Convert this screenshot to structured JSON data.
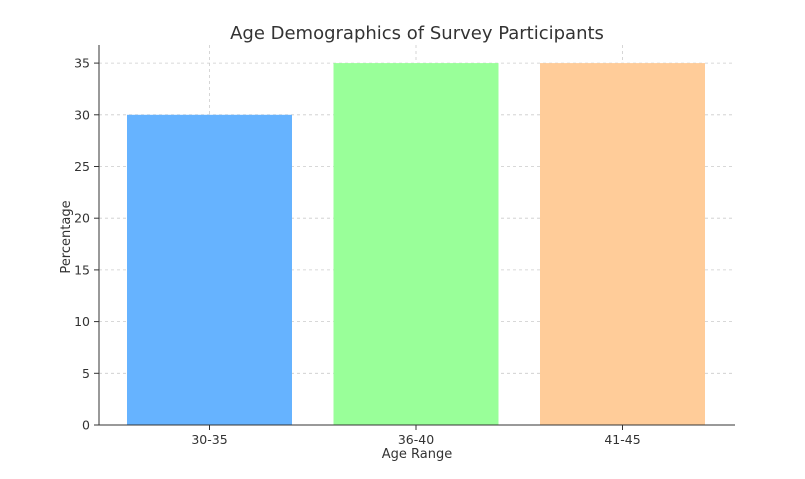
{
  "chart_data": {
    "type": "bar",
    "title": "Age Demographics of Survey Participants",
    "xlabel": "Age Range",
    "ylabel": "Percentage",
    "categories": [
      "30-35",
      "36-40",
      "41-45"
    ],
    "values": [
      30,
      35,
      35
    ],
    "colors": [
      "#66b3ff",
      "#99ff99",
      "#ffcc99"
    ],
    "ylim": [
      0,
      36.75
    ],
    "yticks": [
      0,
      5,
      10,
      15,
      20,
      25,
      30,
      35
    ],
    "grid": true,
    "legend": false
  }
}
